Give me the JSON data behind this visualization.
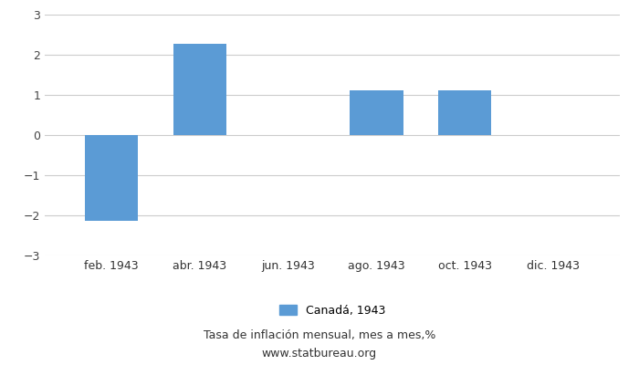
{
  "bar_positions": [
    2,
    4,
    8,
    10
  ],
  "bar_values": [
    -2.13,
    2.27,
    1.12,
    1.12
  ],
  "bar_color": "#5b9bd5",
  "ylim": [
    -3,
    3
  ],
  "yticks": [
    -3,
    -2,
    -1,
    0,
    1,
    2,
    3
  ],
  "xtick_labels": [
    "feb. 1943",
    "abr. 1943",
    "jun. 1943",
    "ago. 1943",
    "oct. 1943",
    "dic. 1943"
  ],
  "xtick_positions": [
    2,
    4,
    6,
    8,
    10,
    12
  ],
  "xlim": [
    0.5,
    13.5
  ],
  "legend_label": "Canadá, 1943",
  "footnote_line1": "Tasa de inflación mensual, mes a mes,%",
  "footnote_line2": "www.statbureau.org",
  "background_color": "#ffffff",
  "grid_color": "#cccccc",
  "bar_width": 1.2,
  "tick_fontsize": 9,
  "legend_fontsize": 9,
  "footnote_fontsize": 9
}
